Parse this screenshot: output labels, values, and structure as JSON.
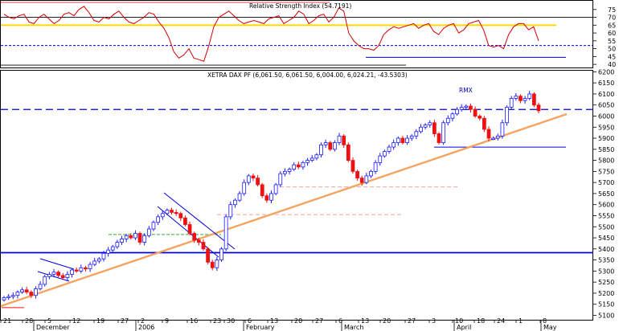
{
  "colors": {
    "rsi_line": "#d40000",
    "rsi_band": "#ffd800",
    "up_body": "#ffffff",
    "up_border": "#1a1aff",
    "down_body": "#ee1111",
    "trendline": "#f4a460",
    "hline": "#0000dd",
    "frame": "#000000"
  },
  "chart_data": [
    {
      "type": "line",
      "title": "Relative Strength Index (54.7191)",
      "ylim": [
        38,
        79
      ],
      "yticks": [
        40,
        45,
        50,
        55,
        60,
        65,
        70,
        75
      ],
      "levels": [
        {
          "y": 65,
          "style": "yellow"
        },
        {
          "y": 70,
          "style": "thin"
        },
        {
          "y": 52,
          "style": "dashed"
        }
      ],
      "values": [
        72,
        70,
        69,
        71,
        72,
        67,
        66,
        70,
        72,
        69,
        66,
        68,
        72,
        73,
        71,
        75,
        77,
        73,
        68,
        67,
        70,
        69,
        72,
        74,
        70,
        67,
        66,
        68,
        70,
        73,
        72,
        67,
        63,
        57,
        48,
        44,
        46,
        50,
        44,
        43,
        42,
        52,
        64,
        70,
        72,
        74,
        71,
        68,
        66,
        67,
        68,
        67,
        66,
        69,
        70,
        71,
        66,
        68,
        70,
        74,
        72,
        66,
        68,
        71,
        72,
        67,
        70,
        76,
        74,
        60,
        55,
        52,
        50,
        50,
        49,
        52,
        59,
        62,
        64,
        63,
        64,
        65,
        66,
        63,
        65,
        66,
        61,
        59,
        63,
        65,
        66,
        60,
        62,
        66,
        67,
        68,
        62,
        52,
        51,
        52,
        50,
        59,
        64,
        66,
        66,
        62,
        64,
        55
      ]
    },
    {
      "type": "candlestick",
      "title": "XETRA DAX PF (6,061.50, 6,061.50, 6,004.00, 6,024.21, -43.5303)",
      "ylim": [
        5080,
        6205
      ],
      "yticks": [
        5100,
        5150,
        5200,
        5250,
        5300,
        5350,
        5400,
        5450,
        5500,
        5550,
        5600,
        5650,
        5700,
        5750,
        5800,
        5850,
        5900,
        5950,
        6000,
        6050,
        6100,
        6150,
        6200
      ],
      "x_tick_labels": [
        "21",
        "28",
        "5",
        "12",
        "19",
        "27",
        "2",
        "9",
        "16",
        "23",
        "30",
        "6",
        "13",
        "20",
        "27",
        "6",
        "13",
        "20",
        "27",
        "3",
        "10",
        "18",
        "24",
        "1",
        "8"
      ],
      "month_labels": [
        "December",
        "2006",
        "February",
        "March",
        "April",
        "May"
      ],
      "annotation": "RMX",
      "closes": [
        5180,
        5185,
        5190,
        5205,
        5215,
        5205,
        5190,
        5220,
        5240,
        5275,
        5285,
        5295,
        5280,
        5270,
        5285,
        5305,
        5300,
        5315,
        5310,
        5330,
        5345,
        5355,
        5380,
        5395,
        5410,
        5430,
        5445,
        5460,
        5450,
        5470,
        5430,
        5460,
        5490,
        5520,
        5545,
        5560,
        5575,
        5565,
        5560,
        5540,
        5510,
        5470,
        5440,
        5430,
        5400,
        5340,
        5315,
        5350,
        5400,
        5545,
        5600,
        5620,
        5650,
        5700,
        5730,
        5720,
        5690,
        5640,
        5620,
        5650,
        5690,
        5740,
        5750,
        5760,
        5780,
        5770,
        5790,
        5800,
        5810,
        5825,
        5870,
        5880,
        5850,
        5880,
        5910,
        5870,
        5800,
        5750,
        5720,
        5700,
        5730,
        5750,
        5790,
        5820,
        5840,
        5860,
        5880,
        5900,
        5880,
        5900,
        5910,
        5930,
        5950,
        5960,
        5970,
        5920,
        5880,
        5970,
        5990,
        6010,
        6030,
        6040,
        6045,
        6030,
        6000,
        5990,
        5940,
        5900,
        5900,
        5910,
        5970,
        6040,
        6080,
        6090,
        6070,
        6080,
        6100,
        6050,
        6024
      ],
      "trendline": {
        "from": [
          0,
          5080
        ],
        "to": [
          119,
          6000
        ]
      },
      "horizontal_lines": [
        {
          "y": 6030,
          "style": "dashed"
        },
        {
          "y": 5383,
          "style": "solid"
        },
        {
          "y": 5860,
          "style": "solid-short"
        }
      ]
    }
  ]
}
